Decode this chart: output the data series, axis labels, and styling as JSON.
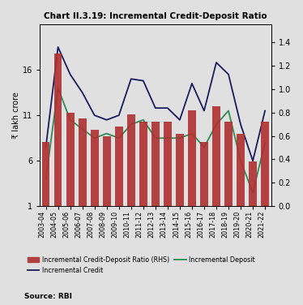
{
  "title": "Chart II.3.19: Incremental Credit-Deposit Ratio",
  "categories": [
    "2003-04",
    "2004-05",
    "2005-06",
    "2006-07",
    "2007-08",
    "2008-09",
    "2009-10",
    "2010-11",
    "2011-12",
    "2012-13",
    "2013-14",
    "2014-15",
    "2015-16",
    "2016-17",
    "2017-18",
    "2018-19",
    "2019-20",
    "2020-21",
    "2021-22"
  ],
  "bar_values": [
    0.55,
    1.3,
    0.8,
    0.75,
    0.65,
    0.6,
    0.68,
    0.78,
    0.72,
    0.72,
    0.72,
    0.62,
    0.82,
    0.55,
    0.85,
    0.72,
    0.62,
    0.38,
    0.72
  ],
  "credit_line": [
    7.5,
    18.5,
    15.5,
    13.5,
    11.0,
    10.5,
    11.0,
    15.0,
    14.8,
    11.8,
    11.8,
    10.5,
    14.5,
    11.5,
    16.8,
    15.5,
    10.0,
    6.0,
    11.5
  ],
  "deposit_line": [
    4.0,
    14.0,
    10.5,
    9.5,
    8.5,
    9.0,
    8.5,
    10.0,
    10.5,
    8.5,
    8.5,
    8.5,
    9.0,
    7.5,
    10.0,
    11.5,
    6.0,
    2.5,
    8.0
  ],
  "bar_color": "#b03030",
  "credit_color": "#1a1a5e",
  "deposit_color": "#2e8b57",
  "ylim_left": [
    1,
    21
  ],
  "ylim_right": [
    0.0,
    1.55
  ],
  "yticks_left": [
    1,
    6,
    11,
    16
  ],
  "yticks_right": [
    0.0,
    0.2,
    0.4,
    0.6,
    0.8,
    1.0,
    1.2,
    1.4
  ],
  "ylabel_left": "₹ lakh crore",
  "source": "Source: RBI",
  "bg_color": "#e0e0e0",
  "legend_labels": [
    "Incremental Credit-Deposit Ratio (RHS)",
    "Incremental Credit",
    "Incremental Deposit"
  ]
}
